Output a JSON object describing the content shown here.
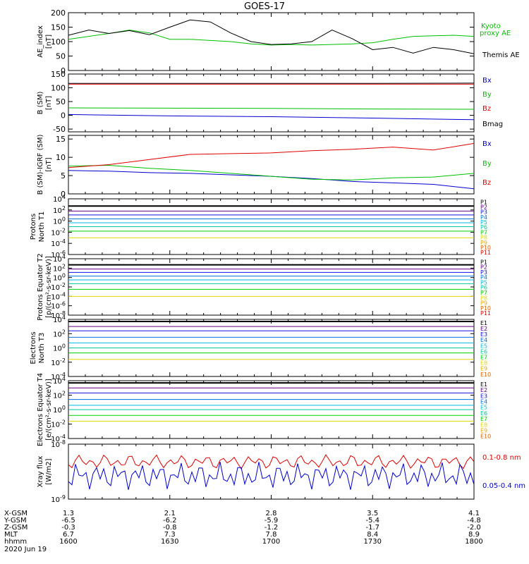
{
  "title": "GOES-17",
  "date_label": "2020 Jun 19",
  "ephemeris": {
    "row_labels": [
      "X-GSM",
      "Y-GSM",
      "Z-GSM",
      "MLT",
      "hhmm"
    ],
    "columns": [
      [
        "1.3",
        "-6.5",
        "-0.3",
        "6.7",
        "1600"
      ],
      [
        "2.1",
        "-6.2",
        "-0.8",
        "7.3",
        "1630"
      ],
      [
        "2.8",
        "-5.9",
        "-1.2",
        "7.8",
        "1700"
      ],
      [
        "3.5",
        "-5.4",
        "-1.7",
        "8.4",
        "1730"
      ],
      [
        "4.1",
        "-4.8",
        "-2.0",
        "8.9",
        "1800"
      ]
    ]
  },
  "colors": {
    "black": "#000000",
    "green": "#00c000",
    "red": "#e00000",
    "blue": "#0000d0",
    "p": [
      "#000000",
      "#600080",
      "#1010e0",
      "#0070e0",
      "#00b8e0",
      "#00c8a0",
      "#00d000",
      "#e0d800",
      "#f0a800",
      "#e06000",
      "#e00000"
    ],
    "e": [
      "#000000",
      "#600080",
      "#1010e0",
      "#0070e0",
      "#00b8e0",
      "#00c8a0",
      "#00d000",
      "#e0d800",
      "#f0a800",
      "#e06000",
      "#e00000"
    ]
  },
  "chart_data": [
    {
      "type": "line",
      "ylabel": "AE_index [nT]",
      "ylim": [
        0,
        200
      ],
      "yticks": [
        "0",
        "50",
        "100",
        "150",
        "200"
      ],
      "x_hours": [
        16.0,
        18.0
      ],
      "series": [
        {
          "name": "Kyoto proxy AE",
          "color": "green",
          "x": [
            16.0,
            16.1,
            16.2,
            16.3,
            16.4,
            16.5,
            16.6,
            16.7,
            16.8,
            16.9,
            17.0,
            17.1,
            17.2,
            17.3,
            17.4,
            17.5,
            17.6,
            17.7,
            17.8,
            17.9,
            18.0
          ],
          "y": [
            108,
            118,
            128,
            140,
            130,
            108,
            108,
            104,
            100,
            92,
            88,
            90,
            88,
            90,
            92,
            96,
            108,
            118,
            120,
            122,
            118
          ]
        },
        {
          "name": "Themis AE",
          "color": "black",
          "x": [
            16.0,
            16.1,
            16.2,
            16.3,
            16.4,
            16.5,
            16.6,
            16.7,
            16.8,
            16.9,
            17.0,
            17.1,
            17.2,
            17.3,
            17.4,
            17.5,
            17.6,
            17.7,
            17.8,
            17.9,
            18.0
          ],
          "y": [
            122,
            140,
            128,
            138,
            124,
            150,
            175,
            168,
            130,
            100,
            90,
            92,
            100,
            140,
            110,
            72,
            80,
            60,
            80,
            72,
            58
          ]
        }
      ],
      "legend": [
        "Kyoto proxy AE",
        "Themis AE"
      ]
    },
    {
      "type": "line",
      "ylabel": "B (SM) [nT]",
      "ylim": [
        -60,
        150
      ],
      "yticks": [
        "-50",
        "0",
        "50",
        "100",
        "150"
      ],
      "series": [
        {
          "name": "Bx",
          "color": "blue",
          "x": [
            16.0,
            16.5,
            17.0,
            17.5,
            18.0
          ],
          "y": [
            3,
            -2,
            -5,
            -10,
            -16
          ]
        },
        {
          "name": "By",
          "color": "green",
          "x": [
            16.0,
            16.5,
            17.0,
            17.5,
            18.0
          ],
          "y": [
            27,
            26,
            25,
            23,
            22
          ]
        },
        {
          "name": "Bz",
          "color": "red",
          "x": [
            16.0,
            16.5,
            17.0,
            17.5,
            18.0
          ],
          "y": [
            113,
            113,
            113,
            113,
            113
          ]
        },
        {
          "name": "Bmag",
          "color": "black",
          "x": [
            16.0,
            16.5,
            17.0,
            17.5,
            18.0
          ],
          "y": [
            116,
            116,
            116,
            116,
            117
          ]
        }
      ],
      "legend": [
        "Bx",
        "By",
        "Bz",
        "Bmag"
      ]
    },
    {
      "type": "line",
      "ylabel": "B (SM)-IGRF (SM) [nT]",
      "ylim": [
        0,
        16
      ],
      "yticks": [
        "0",
        "5",
        "10",
        "15"
      ],
      "series": [
        {
          "name": "Bx",
          "color": "blue",
          "x": [
            16.0,
            16.2,
            16.4,
            16.6,
            16.8,
            17.0,
            17.2,
            17.4,
            17.6,
            17.8,
            18.0
          ],
          "y": [
            6.4,
            6.2,
            5.8,
            5.6,
            5.2,
            4.8,
            4.2,
            3.4,
            3.0,
            2.6,
            1.4
          ]
        },
        {
          "name": "By",
          "color": "green",
          "x": [
            16.0,
            16.2,
            16.4,
            16.6,
            16.8,
            17.0,
            17.2,
            17.4,
            17.6,
            17.8,
            18.0
          ],
          "y": [
            7.6,
            7.8,
            7.0,
            6.4,
            5.6,
            4.8,
            4.0,
            3.8,
            4.4,
            4.6,
            5.6
          ]
        },
        {
          "name": "Bz",
          "color": "red",
          "x": [
            16.0,
            16.2,
            16.4,
            16.6,
            16.8,
            17.0,
            17.2,
            17.4,
            17.6,
            17.8,
            18.0
          ],
          "y": [
            7.2,
            8.0,
            9.4,
            10.8,
            11.0,
            11.2,
            11.8,
            12.2,
            12.8,
            12.0,
            13.8
          ]
        }
      ],
      "legend": [
        "Bx",
        "By",
        "Bz"
      ]
    },
    {
      "type": "line",
      "log": true,
      "ylabel": "Protons North T1",
      "ylim_exp": [
        -6,
        4
      ],
      "yticks": [
        "10^-6",
        "10^-4",
        "10^-2",
        "10^0",
        "10^2",
        "10^4"
      ],
      "channels": [
        "P1",
        "P2",
        "P3",
        "P4",
        "P5",
        "P6",
        "P7",
        "P8",
        "P9",
        "P10",
        "P11"
      ],
      "levels_exp": [
        2.7,
        1.8,
        1.1,
        0.4,
        -0.3,
        -1.0,
        -1.8,
        -3.0
      ]
    },
    {
      "type": "line",
      "log": true,
      "ylabel": "Protons Equator T2 [p/(cm²-s-sr-keV)]",
      "ylim_exp": [
        -8,
        4
      ],
      "yticks": [
        "10^-8",
        "10^-6",
        "10^-4",
        "10^-2",
        "10^0",
        "10^2",
        "10^4"
      ],
      "channels": [
        "P1",
        "P2",
        "P3",
        "P4",
        "P5",
        "P6",
        "P7",
        "P8",
        "P9",
        "P10",
        "P11"
      ],
      "levels_exp": [
        2.7,
        1.8,
        1.1,
        0.3,
        -0.5,
        -1.3,
        -2.5,
        -4.0
      ]
    },
    {
      "type": "line",
      "log": true,
      "ylabel": "Electrons North T3",
      "ylim_exp": [
        -4,
        4
      ],
      "yticks": [
        "10^-4",
        "10^-2",
        "10^0",
        "10^2",
        "10^4"
      ],
      "channels": [
        "E1",
        "E2",
        "E3",
        "E4",
        "E5",
        "E6",
        "E7",
        "E8",
        "E9",
        "E10"
      ],
      "levels_exp": [
        3.7,
        3.0,
        2.4,
        1.5,
        0.7,
        0.0,
        -0.7,
        -1.6
      ]
    },
    {
      "type": "line",
      "log": true,
      "ylabel": "Electrons Equator T4 [e/(cm²-s-sr-keV)]",
      "ylim_exp": [
        -4,
        4
      ],
      "yticks": [
        "10^-4",
        "10^-2",
        "10^0",
        "10^2",
        "10^4"
      ],
      "channels": [
        "E1",
        "E2",
        "E3",
        "E4",
        "E5",
        "E6",
        "E7",
        "E8",
        "E9",
        "E10"
      ],
      "levels_exp": [
        3.7,
        3.0,
        2.3,
        1.4,
        0.6,
        0.0,
        -0.8,
        -1.6
      ]
    },
    {
      "type": "line",
      "log": true,
      "ylabel": "Xray flux [W/m2]",
      "ylim_exp": [
        -9,
        -8
      ],
      "yticks": [
        "10^-9",
        "10^-8"
      ],
      "series": [
        {
          "name": "0.1-0.8 nm",
          "color": "red"
        },
        {
          "name": "0.05-0.4 nm",
          "color": "blue"
        }
      ],
      "legend": [
        "0.1-0.8 nm",
        "0.05-0.4 nm"
      ]
    }
  ]
}
